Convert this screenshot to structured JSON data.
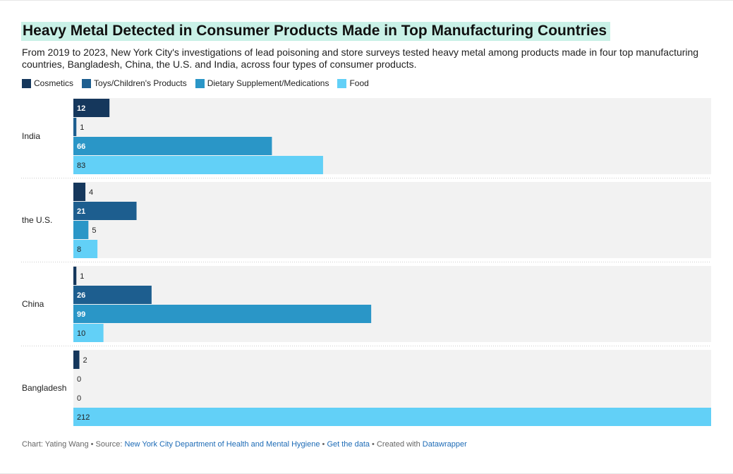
{
  "title": "Heavy Metal Detected in Consumer Products Made in Top Manufacturing Countries",
  "subtitle": "From 2019 to 2023, New York City's investigations of lead poisoning and store surveys tested heavy metal among products made in four top manufacturing countries, Bangladesh, China, the U.S. and India, across four types of consumer products.",
  "chart_data": {
    "type": "bar",
    "orientation": "horizontal",
    "categories": [
      "India",
      "the U.S.",
      "China",
      "Bangladesh"
    ],
    "series": [
      {
        "name": "Cosmetics",
        "color": "#15375c",
        "values": [
          12,
          4,
          1,
          2
        ]
      },
      {
        "name": "Toys/Children's Products",
        "color": "#1d5e8f",
        "values": [
          1,
          21,
          26,
          0
        ]
      },
      {
        "name": "Dietary Supplement/Medications",
        "color": "#2a96c7",
        "values": [
          66,
          5,
          99,
          0
        ]
      },
      {
        "name": "Food",
        "color": "#62d0f7",
        "values": [
          83,
          8,
          10,
          212
        ]
      }
    ],
    "xlim": [
      0,
      212
    ],
    "legend_position": "top-left",
    "grid": false
  },
  "footer": {
    "prefix": "Chart: Yating Wang • Source: ",
    "source_link": "New York City Department of Health and Mental Hygiene",
    "sep1": " • ",
    "data_link": "Get the data",
    "sep2": " • Created with ",
    "tool_link": "Datawrapper"
  }
}
